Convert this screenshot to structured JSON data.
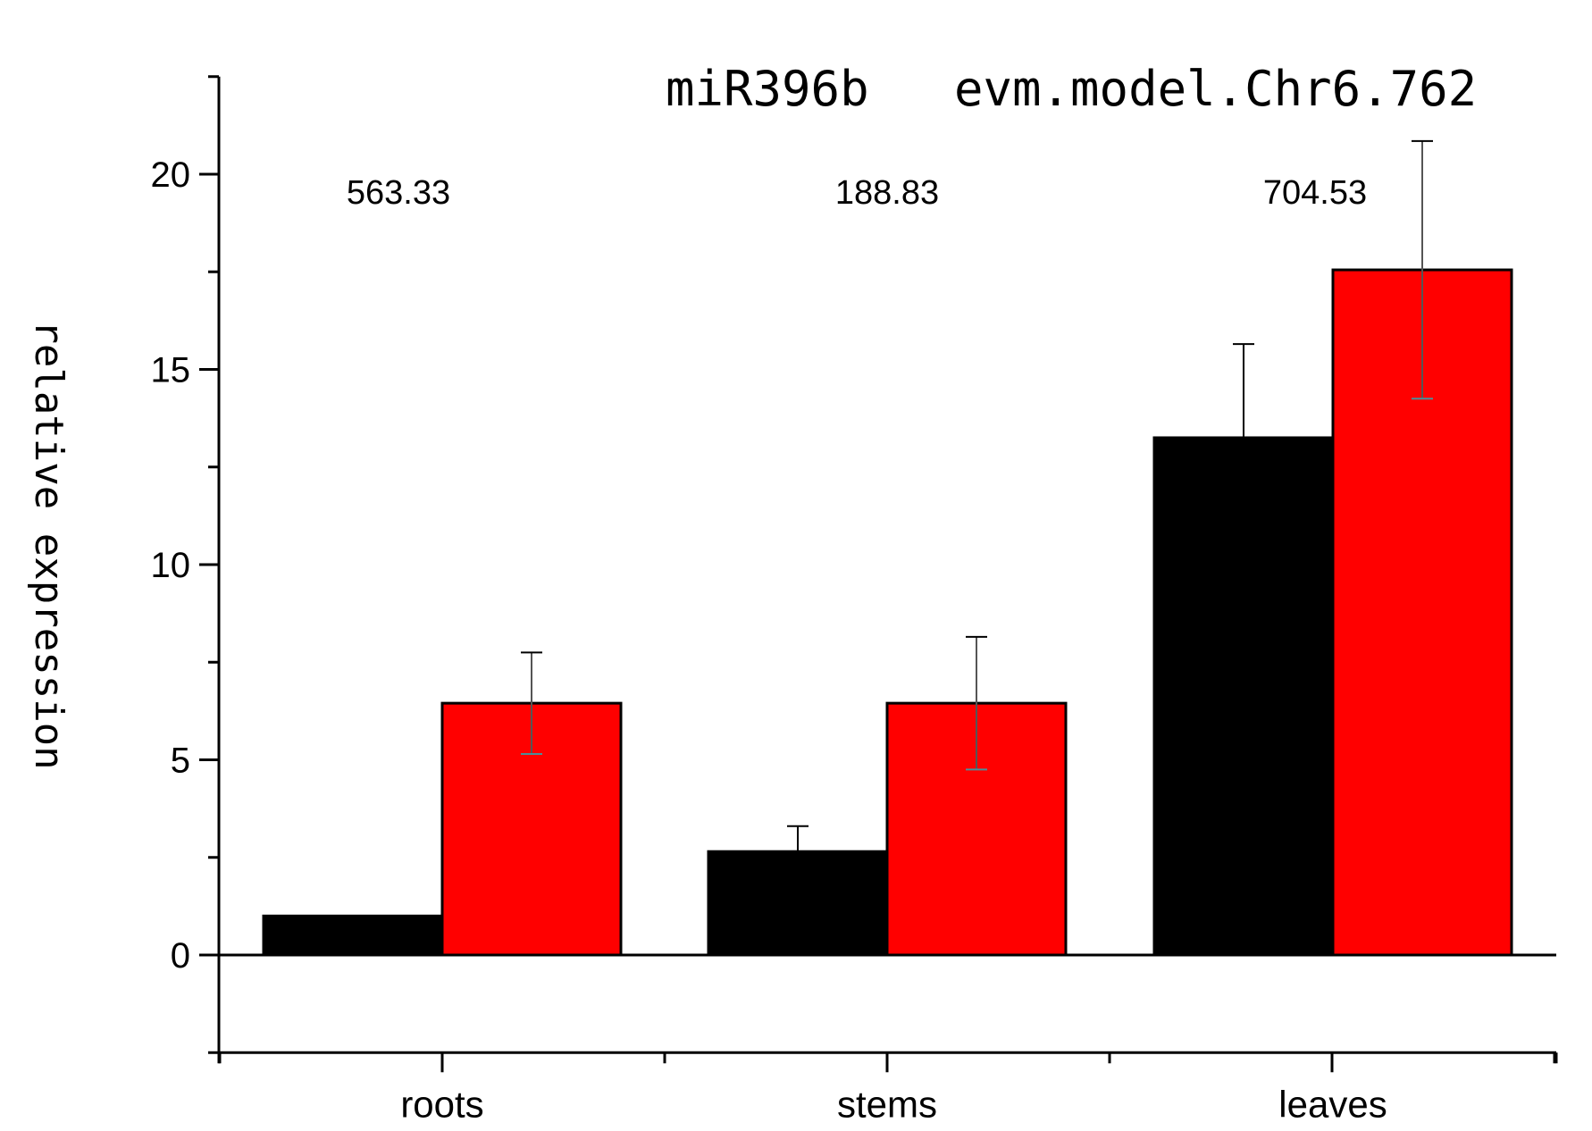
{
  "chart_data": {
    "type": "bar",
    "categories": [
      "roots",
      "stems",
      "leaves"
    ],
    "series": [
      {
        "name": "miR396b",
        "color": "#000000",
        "values": [
          1.0,
          2.65,
          13.25
        ],
        "errors": [
          0,
          0.65,
          2.4
        ]
      },
      {
        "name": "evm.model.Chr6.762",
        "color": "#ff0000",
        "values": [
          6.45,
          6.45,
          17.55
        ],
        "errors": [
          1.3,
          1.7,
          3.3
        ]
      }
    ],
    "annotations": [
      "563.33",
      "188.83",
      "704.53"
    ],
    "ylabel": "relative expression",
    "xlabel": "",
    "ylim": [
      -2.5,
      22.5
    ],
    "yticks": [
      0,
      5,
      10,
      15,
      20
    ],
    "grid": false,
    "legend": "top-right"
  }
}
